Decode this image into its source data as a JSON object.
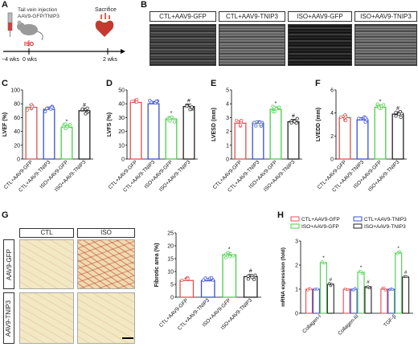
{
  "panels": {
    "A": "A",
    "B": "B",
    "C": "C",
    "D": "D",
    "E": "E",
    "F": "F",
    "G": "G",
    "H": "H"
  },
  "schema": {
    "injection_line1": "Tail vein injection",
    "injection_line2": "AAV9-GFP/TNIP3",
    "sacrifice": "Sacrifice",
    "iso": "ISO",
    "t_minus4": "−4 wks",
    "t0": "0 wks",
    "t2": "2 wks"
  },
  "echo_groups": [
    "CTL+AAV9-GFP",
    "CTL+AAV9-TNIP3",
    "ISO+AAV9-GFP",
    "ISO+AAV9-TNIP3"
  ],
  "group_colors": [
    "#e05050",
    "#3a4fd0",
    "#47d047",
    "#222222"
  ],
  "histology": {
    "col_headers": [
      "CTL",
      "ISO"
    ],
    "row_headers": [
      "AAV9-GFP",
      "AAV9-TNIP3"
    ]
  },
  "chart_data": [
    {
      "type": "bar",
      "ylabel": "LVEF (%)",
      "ylim": [
        0,
        100
      ],
      "yticks": [
        "0",
        "20",
        "40",
        "60",
        "80",
        "100"
      ],
      "categories": [
        "CTL+AAV9-GFP",
        "CTL+AAV9-TNIP3",
        "ISO+AAV9-GFP",
        "ISO+AAV9-TNIP3"
      ],
      "values": [
        75,
        72,
        46,
        70
      ],
      "marks": [
        "",
        "",
        "*",
        "#"
      ]
    },
    {
      "type": "bar",
      "ylabel": "LVFS (%)",
      "ylim": [
        0,
        50
      ],
      "yticks": [
        "0",
        "10",
        "20",
        "30",
        "40",
        "50"
      ],
      "categories": [
        "CTL+AAV9-GFP",
        "CTL+AAV9-TNIP3",
        "ISO+AAV9-GFP",
        "ISO+AAV9-TNIP3"
      ],
      "values": [
        41,
        40,
        29,
        38
      ],
      "marks": [
        "",
        "",
        "*",
        "#"
      ]
    },
    {
      "type": "bar",
      "ylabel": "LVESD (mm)",
      "ylim": [
        0,
        5
      ],
      "yticks": [
        "0",
        "1",
        "2",
        "3",
        "4",
        "5"
      ],
      "categories": [
        "CTL+AAV9-GFP",
        "CTL+AAV9-TNIP3",
        "ISO+AAV9-GFP",
        "ISO+AAV9-TNIP3"
      ],
      "values": [
        2.6,
        2.6,
        3.6,
        2.7
      ],
      "marks": [
        "",
        "",
        "*",
        "#"
      ]
    },
    {
      "type": "bar",
      "ylabel": "LVEDD (mm)",
      "ylim": [
        0,
        6
      ],
      "yticks": [
        "0",
        "2",
        "4",
        "6"
      ],
      "categories": [
        "CTL+AAV9-GFP",
        "CTL+AAV9-TNIP3",
        "ISO+AAV9-GFP",
        "ISO+AAV9-TNIP3"
      ],
      "values": [
        3.6,
        3.4,
        4.5,
        3.9
      ],
      "marks": [
        "",
        "",
        "*",
        "#"
      ]
    },
    {
      "type": "bar",
      "ylabel": "Fibrotic area (%)",
      "ylim": [
        0,
        25
      ],
      "yticks": [
        "0",
        "5",
        "10",
        "15",
        "20",
        "25"
      ],
      "categories": [
        "CTL+AAV9-GFP",
        "CTL+AAV9-TNIP3",
        "ISO+AAV9-GFP",
        "ISO+AAV9-TNIP3"
      ],
      "values": [
        6.5,
        6.4,
        16.5,
        8
      ],
      "marks": [
        "",
        "",
        "*",
        "#"
      ]
    },
    {
      "type": "bar",
      "ylabel": "mRNA expression (fold)",
      "ylim": [
        0,
        3
      ],
      "yticks": [
        "0",
        "1",
        "2",
        "3"
      ],
      "categories": [
        "Collagen-I",
        "Collagen-III",
        "TGF-β"
      ],
      "series": [
        {
          "name": "CTL+AAV9-GFP",
          "values": [
            1.0,
            1.0,
            1.0
          ]
        },
        {
          "name": "CTL+AAV9-TNIP3",
          "values": [
            1.0,
            1.0,
            1.0
          ]
        },
        {
          "name": "ISO+AAV9-GFP",
          "values": [
            2.1,
            1.7,
            2.5
          ]
        },
        {
          "name": "ISO+AAV9-TNIP3",
          "values": [
            1.2,
            1.1,
            1.5
          ]
        }
      ],
      "marks": [
        "",
        "",
        "*",
        "#"
      ]
    }
  ]
}
